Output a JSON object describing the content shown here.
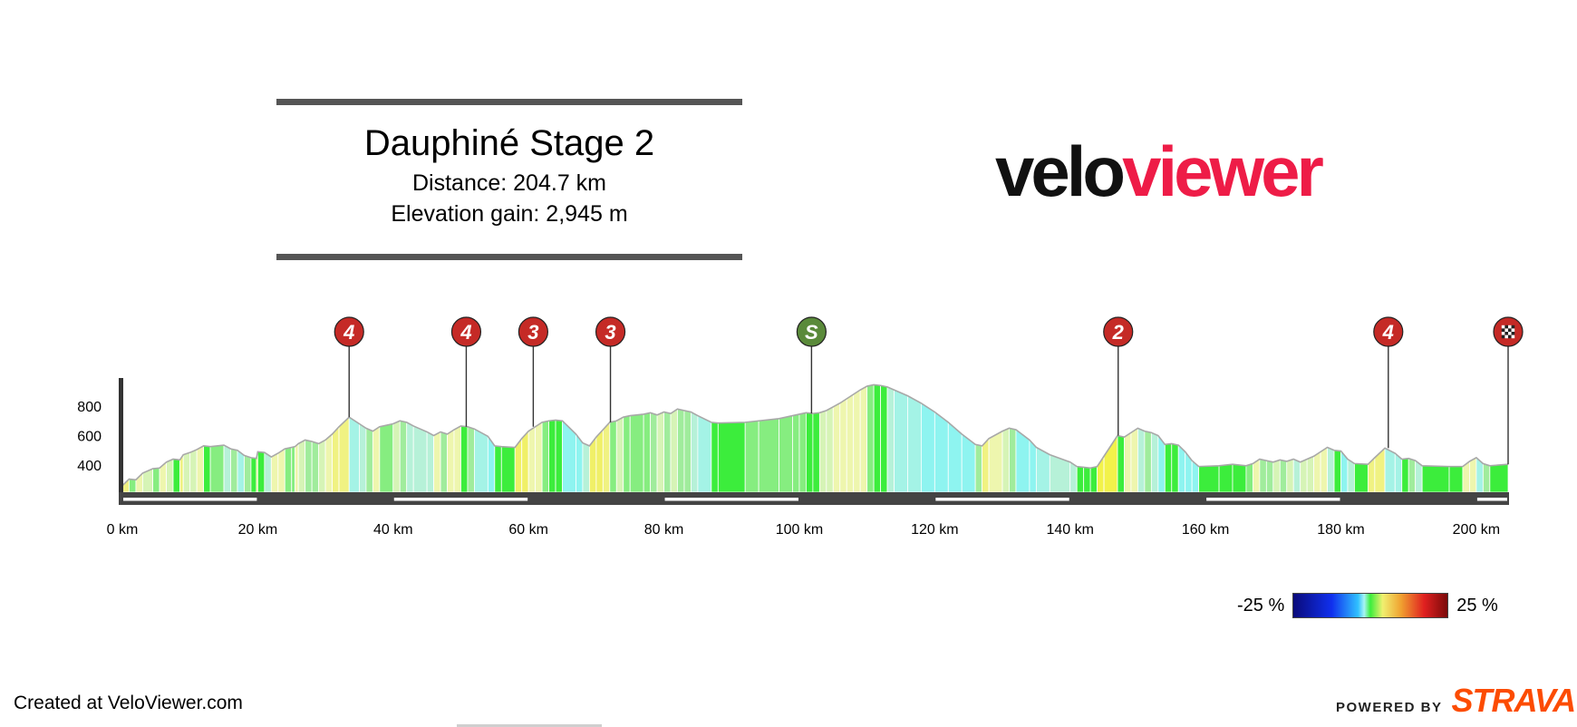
{
  "header": {
    "title": "Dauphiné Stage 2",
    "distance": "Distance: 204.7 km",
    "elevation_gain": "Elevation gain: 2,945 m"
  },
  "logo": {
    "part1": "velo",
    "part2": "viewer"
  },
  "footer": {
    "created_at": "Created at VeloViewer.com",
    "powered_by": "POWERED BY",
    "strava": "STRAVA"
  },
  "legend": {
    "min_label": "-25 %",
    "max_label": "25 %"
  },
  "colors": {
    "accent": "#ee1c47",
    "strava": "#fc4c02",
    "climb_marker": "#c52a26",
    "sprint_marker": "#5a8a3a"
  },
  "chart_data": {
    "type": "area",
    "title": "",
    "xlabel": "",
    "ylabel": "",
    "x_unit": "km",
    "y_unit": "m",
    "xlim": [
      0,
      204.7
    ],
    "ylim": [
      180,
      1000
    ],
    "x_ticks": [
      0,
      20,
      40,
      60,
      80,
      100,
      120,
      140,
      160,
      180,
      200
    ],
    "x_tick_labels": [
      "0 km",
      "20 km",
      "40 km",
      "60 km",
      "80 km",
      "100 km",
      "120 km",
      "140 km",
      "160 km",
      "180 km",
      "200 km"
    ],
    "y_ticks": [
      400,
      600,
      800
    ],
    "y_tick_labels": [
      "400",
      "600",
      "800"
    ],
    "gradient_scale": {
      "min": -25,
      "max": 25
    },
    "profile": [
      {
        "x": 0,
        "y": 260,
        "g": 3
      },
      {
        "x": 1,
        "y": 305,
        "g": 4
      },
      {
        "x": 2,
        "y": 300,
        "g": 1
      },
      {
        "x": 3,
        "y": 345,
        "g": 3
      },
      {
        "x": 4.5,
        "y": 375,
        "g": 2
      },
      {
        "x": 5.5,
        "y": 380,
        "g": 1
      },
      {
        "x": 6.5,
        "y": 420,
        "g": 3
      },
      {
        "x": 7.5,
        "y": 440,
        "g": 2
      },
      {
        "x": 8.5,
        "y": 435,
        "g": 0
      },
      {
        "x": 9,
        "y": 470,
        "g": 4
      },
      {
        "x": 10,
        "y": 485,
        "g": 2
      },
      {
        "x": 11,
        "y": 505,
        "g": 2
      },
      {
        "x": 12,
        "y": 530,
        "g": 3
      },
      {
        "x": 13,
        "y": 525,
        "g": 0
      },
      {
        "x": 15,
        "y": 535,
        "g": 1
      },
      {
        "x": 16,
        "y": 510,
        "g": -2
      },
      {
        "x": 17,
        "y": 500,
        "g": -1
      },
      {
        "x": 18,
        "y": 465,
        "g": -3
      },
      {
        "x": 19,
        "y": 450,
        "g": -1
      },
      {
        "x": 19.8,
        "y": 445,
        "g": 0
      },
      {
        "x": 20,
        "y": 490,
        "g": 4
      },
      {
        "x": 21,
        "y": 485,
        "g": 0
      },
      {
        "x": 22,
        "y": 455,
        "g": -2
      },
      {
        "x": 23,
        "y": 480,
        "g": 3
      },
      {
        "x": 24,
        "y": 510,
        "g": 3
      },
      {
        "x": 25,
        "y": 520,
        "g": 1
      },
      {
        "x": 25.5,
        "y": 525,
        "g": 1
      },
      {
        "x": 26,
        "y": 545,
        "g": 3
      },
      {
        "x": 27,
        "y": 570,
        "g": 2
      },
      {
        "x": 28,
        "y": 560,
        "g": -1
      },
      {
        "x": 29,
        "y": 545,
        "g": -1
      },
      {
        "x": 30,
        "y": 570,
        "g": 2
      },
      {
        "x": 31,
        "y": 610,
        "g": 3
      },
      {
        "x": 32,
        "y": 660,
        "g": 4
      },
      {
        "x": 33.5,
        "y": 725,
        "g": 4
      },
      {
        "x": 35,
        "y": 680,
        "g": -3
      },
      {
        "x": 36,
        "y": 650,
        "g": -2
      },
      {
        "x": 37,
        "y": 630,
        "g": -1
      },
      {
        "x": 38,
        "y": 660,
        "g": 3
      },
      {
        "x": 40,
        "y": 680,
        "g": 1
      },
      {
        "x": 41,
        "y": 700,
        "g": 2
      },
      {
        "x": 42,
        "y": 690,
        "g": -1
      },
      {
        "x": 43,
        "y": 665,
        "g": -2
      },
      {
        "x": 45,
        "y": 625,
        "g": -2
      },
      {
        "x": 46,
        "y": 600,
        "g": -2
      },
      {
        "x": 47,
        "y": 625,
        "g": 3
      },
      {
        "x": 48,
        "y": 610,
        "g": -1
      },
      {
        "x": 49,
        "y": 640,
        "g": 3
      },
      {
        "x": 50,
        "y": 665,
        "g": 3
      },
      {
        "x": 51,
        "y": 660,
        "g": 0
      },
      {
        "x": 52,
        "y": 645,
        "g": -1
      },
      {
        "x": 54,
        "y": 595,
        "g": -3
      },
      {
        "x": 55,
        "y": 530,
        "g": -5
      },
      {
        "x": 56,
        "y": 525,
        "g": 0
      },
      {
        "x": 58,
        "y": 520,
        "g": 0
      },
      {
        "x": 59,
        "y": 580,
        "g": 5
      },
      {
        "x": 60,
        "y": 630,
        "g": 5
      },
      {
        "x": 61,
        "y": 660,
        "g": 3
      },
      {
        "x": 62,
        "y": 690,
        "g": 3
      },
      {
        "x": 63,
        "y": 700,
        "g": 1
      },
      {
        "x": 64,
        "y": 705,
        "g": 0
      },
      {
        "x": 65,
        "y": 700,
        "g": 0
      },
      {
        "x": 67,
        "y": 610,
        "g": -5
      },
      {
        "x": 68,
        "y": 550,
        "g": -5
      },
      {
        "x": 69,
        "y": 530,
        "g": -2
      },
      {
        "x": 70,
        "y": 590,
        "g": 5
      },
      {
        "x": 71,
        "y": 640,
        "g": 5
      },
      {
        "x": 72,
        "y": 690,
        "g": 4
      },
      {
        "x": 73,
        "y": 700,
        "g": 1
      },
      {
        "x": 74,
        "y": 725,
        "g": 2
      },
      {
        "x": 75,
        "y": 735,
        "g": 1
      },
      {
        "x": 77,
        "y": 745,
        "g": 1
      },
      {
        "x": 78,
        "y": 755,
        "g": 1
      },
      {
        "x": 79,
        "y": 740,
        "g": -1
      },
      {
        "x": 80,
        "y": 760,
        "g": 2
      },
      {
        "x": 81,
        "y": 750,
        "g": -1
      },
      {
        "x": 82,
        "y": 780,
        "g": 2
      },
      {
        "x": 83,
        "y": 770,
        "g": -1
      },
      {
        "x": 84,
        "y": 760,
        "g": -1
      },
      {
        "x": 85,
        "y": 735,
        "g": -2
      },
      {
        "x": 87,
        "y": 690,
        "g": -3
      },
      {
        "x": 88,
        "y": 685,
        "g": 0
      },
      {
        "x": 92,
        "y": 690,
        "g": 0
      },
      {
        "x": 94,
        "y": 700,
        "g": 1
      },
      {
        "x": 97,
        "y": 715,
        "g": 1
      },
      {
        "x": 99,
        "y": 735,
        "g": 1
      },
      {
        "x": 100,
        "y": 745,
        "g": 1
      },
      {
        "x": 101,
        "y": 755,
        "g": 1
      },
      {
        "x": 102,
        "y": 750,
        "g": 0
      },
      {
        "x": 103,
        "y": 755,
        "g": 0
      },
      {
        "x": 104,
        "y": 770,
        "g": 2
      },
      {
        "x": 105,
        "y": 795,
        "g": 2
      },
      {
        "x": 106,
        "y": 820,
        "g": 3
      },
      {
        "x": 107,
        "y": 850,
        "g": 3
      },
      {
        "x": 108,
        "y": 880,
        "g": 3
      },
      {
        "x": 109,
        "y": 910,
        "g": 3
      },
      {
        "x": 110,
        "y": 935,
        "g": 3
      },
      {
        "x": 111,
        "y": 945,
        "g": 1
      },
      {
        "x": 112,
        "y": 940,
        "g": 0
      },
      {
        "x": 113,
        "y": 930,
        "g": 0
      },
      {
        "x": 114,
        "y": 910,
        "g": -2
      },
      {
        "x": 116,
        "y": 870,
        "g": -3
      },
      {
        "x": 118,
        "y": 820,
        "g": -3
      },
      {
        "x": 120,
        "y": 760,
        "g": -4
      },
      {
        "x": 122,
        "y": 690,
        "g": -4
      },
      {
        "x": 124,
        "y": 610,
        "g": -4
      },
      {
        "x": 126,
        "y": 540,
        "g": -4
      },
      {
        "x": 127,
        "y": 530,
        "g": -1
      },
      {
        "x": 128,
        "y": 580,
        "g": 4
      },
      {
        "x": 130,
        "y": 630,
        "g": 3
      },
      {
        "x": 131,
        "y": 650,
        "g": 2
      },
      {
        "x": 132,
        "y": 640,
        "g": -1
      },
      {
        "x": 134,
        "y": 570,
        "g": -4
      },
      {
        "x": 135,
        "y": 520,
        "g": -4
      },
      {
        "x": 137,
        "y": 470,
        "g": -3
      },
      {
        "x": 140,
        "y": 420,
        "g": -2
      },
      {
        "x": 141,
        "y": 390,
        "g": -2
      },
      {
        "x": 142,
        "y": 385,
        "g": 0
      },
      {
        "x": 143,
        "y": 380,
        "g": 0
      },
      {
        "x": 144,
        "y": 390,
        "g": 0
      },
      {
        "x": 145,
        "y": 460,
        "g": 7
      },
      {
        "x": 147,
        "y": 600,
        "g": 7
      },
      {
        "x": 148,
        "y": 590,
        "g": 0
      },
      {
        "x": 149,
        "y": 620,
        "g": 3
      },
      {
        "x": 150,
        "y": 650,
        "g": 3
      },
      {
        "x": 151,
        "y": 630,
        "g": -2
      },
      {
        "x": 152,
        "y": 620,
        "g": -1
      },
      {
        "x": 153,
        "y": 600,
        "g": -2
      },
      {
        "x": 154,
        "y": 540,
        "g": -4
      },
      {
        "x": 155,
        "y": 545,
        "g": 0
      },
      {
        "x": 156,
        "y": 535,
        "g": 0
      },
      {
        "x": 157,
        "y": 490,
        "g": -4
      },
      {
        "x": 158,
        "y": 430,
        "g": -5
      },
      {
        "x": 159,
        "y": 390,
        "g": -4
      },
      {
        "x": 162,
        "y": 395,
        "g": 0
      },
      {
        "x": 164,
        "y": 405,
        "g": 0
      },
      {
        "x": 166,
        "y": 395,
        "g": 0
      },
      {
        "x": 167,
        "y": 410,
        "g": 1
      },
      {
        "x": 168,
        "y": 440,
        "g": 3
      },
      {
        "x": 169,
        "y": 430,
        "g": -1
      },
      {
        "x": 170,
        "y": 420,
        "g": -1
      },
      {
        "x": 171,
        "y": 435,
        "g": 2
      },
      {
        "x": 172,
        "y": 425,
        "g": -1
      },
      {
        "x": 173,
        "y": 440,
        "g": 2
      },
      {
        "x": 174,
        "y": 420,
        "g": -2
      },
      {
        "x": 175,
        "y": 440,
        "g": 2
      },
      {
        "x": 176,
        "y": 460,
        "g": 2
      },
      {
        "x": 177,
        "y": 490,
        "g": 3
      },
      {
        "x": 178,
        "y": 520,
        "g": 3
      },
      {
        "x": 179,
        "y": 500,
        "g": -2
      },
      {
        "x": 180,
        "y": 495,
        "g": 0
      },
      {
        "x": 181,
        "y": 440,
        "g": -4
      },
      {
        "x": 182,
        "y": 410,
        "g": -2
      },
      {
        "x": 184,
        "y": 405,
        "g": 0
      },
      {
        "x": 185,
        "y": 450,
        "g": 4
      },
      {
        "x": 186.5,
        "y": 515,
        "g": 4
      },
      {
        "x": 188,
        "y": 480,
        "g": -3
      },
      {
        "x": 189,
        "y": 440,
        "g": -3
      },
      {
        "x": 190,
        "y": 445,
        "g": 0
      },
      {
        "x": 191,
        "y": 430,
        "g": -1
      },
      {
        "x": 192,
        "y": 395,
        "g": -2
      },
      {
        "x": 196,
        "y": 390,
        "g": 0
      },
      {
        "x": 198,
        "y": 390,
        "g": 0
      },
      {
        "x": 199,
        "y": 425,
        "g": 3
      },
      {
        "x": 200,
        "y": 450,
        "g": 3
      },
      {
        "x": 201,
        "y": 410,
        "g": -3
      },
      {
        "x": 202,
        "y": 395,
        "g": -1
      },
      {
        "x": 204.7,
        "y": 405,
        "g": 0
      }
    ],
    "markers": [
      {
        "label": "4",
        "type": "climb",
        "km": 33.5
      },
      {
        "label": "4",
        "type": "climb",
        "km": 50.8
      },
      {
        "label": "3",
        "type": "climb",
        "km": 60.7
      },
      {
        "label": "3",
        "type": "climb",
        "km": 72.1
      },
      {
        "label": "S",
        "type": "sprint",
        "km": 101.8
      },
      {
        "label": "2",
        "type": "climb",
        "km": 147.1
      },
      {
        "label": "4",
        "type": "climb",
        "km": 187.0
      },
      {
        "label": "",
        "type": "finish",
        "km": 204.7
      }
    ]
  }
}
